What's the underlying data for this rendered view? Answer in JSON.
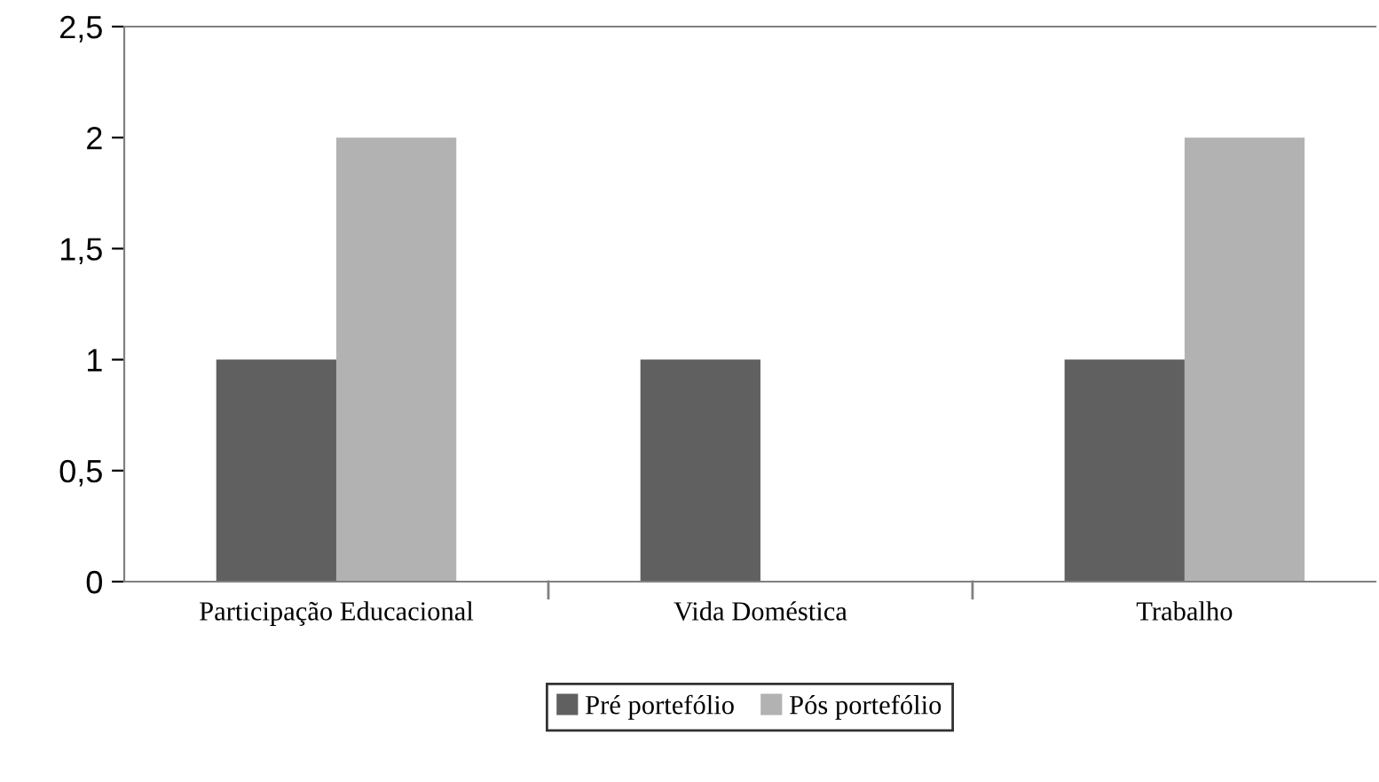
{
  "chart_data": {
    "type": "bar",
    "categories": [
      "Participação Educacional",
      "Vida Doméstica",
      "Trabalho"
    ],
    "series": [
      {
        "name": "Pré portefólio",
        "color": "#606060",
        "values": [
          1,
          1,
          1
        ]
      },
      {
        "name": "Pós portefólio",
        "color": "#b2b2b2",
        "values": [
          2,
          0,
          2
        ]
      }
    ],
    "ylim": [
      0,
      2.5
    ],
    "yticks": [
      0,
      {
        "value": 0.5,
        "label": "0,5"
      },
      1,
      {
        "value": 1.5,
        "label": "1,5"
      },
      2,
      {
        "value": 2.5,
        "label": "2,5"
      }
    ],
    "grid": false,
    "legend": "bottom"
  }
}
